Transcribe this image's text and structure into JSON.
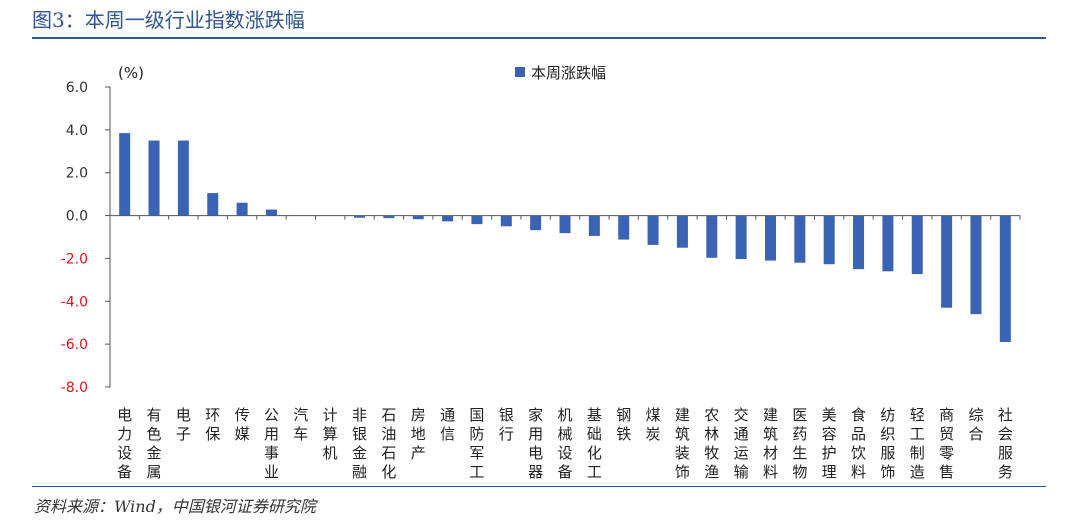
{
  "figure": {
    "title": "图3：本周一级行业指数涨跌幅",
    "source": "资料来源：Wind，中国银河证券研究院"
  },
  "colors": {
    "accent": "#2f5597",
    "bar": "#3a63b4",
    "negative_tick": "#e0141e",
    "axis": "#555555"
  },
  "chart_data": {
    "type": "bar",
    "title": "",
    "xlabel": "",
    "ylabel": "",
    "unit": "(%)",
    "ylim": [
      -8,
      6
    ],
    "yticks": [
      6,
      4,
      2,
      0,
      -2,
      -4,
      -6,
      -8
    ],
    "ytick_labels": [
      "6.0",
      "4.0",
      "2.0",
      "0.0",
      "-2.0",
      "-4.0",
      "-6.0",
      "-8.0"
    ],
    "legend": "top-center",
    "grid": false,
    "categories": [
      "电力设备",
      "有色金属",
      "电子",
      "环保",
      "传媒",
      "公用事业",
      "汽车",
      "计算机",
      "非银金融",
      "石油石化",
      "房地产",
      "通信",
      "国防军工",
      "银行",
      "家用电器",
      "机械设备",
      "基础化工",
      "钢铁",
      "煤炭",
      "建筑装饰",
      "农林牧渔",
      "交通运输",
      "建筑材料",
      "医药生物",
      "美容护理",
      "食品饮料",
      "纺织服饰",
      "轻工制造",
      "商贸零售",
      "综合",
      "社会服务"
    ],
    "series": [
      {
        "name": "本周涨跌幅",
        "values": [
          3.85,
          3.5,
          3.5,
          1.05,
          0.6,
          0.28,
          0.0,
          0.0,
          -0.1,
          -0.12,
          -0.17,
          -0.27,
          -0.4,
          -0.5,
          -0.68,
          -0.82,
          -0.95,
          -1.12,
          -1.37,
          -1.5,
          -1.97,
          -2.03,
          -2.1,
          -2.2,
          -2.27,
          -2.5,
          -2.6,
          -2.73,
          -4.3,
          -4.6,
          -5.9
        ]
      }
    ]
  }
}
